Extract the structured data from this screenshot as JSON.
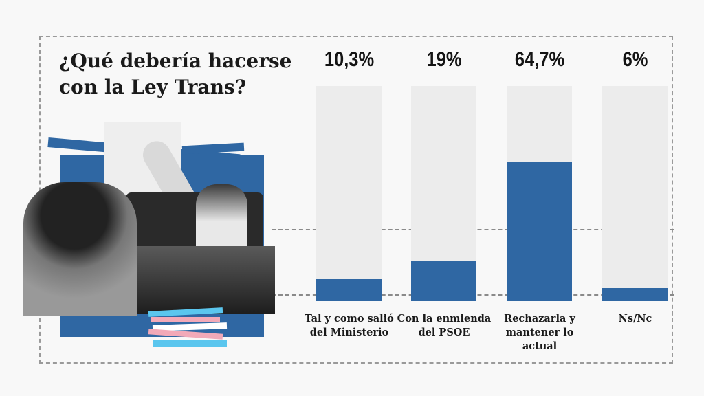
{
  "chart_data": {
    "type": "bar",
    "title": "¿Qué debería hacerse con la Ley Trans?",
    "categories": [
      "Tal y como salió del Ministerio",
      "Con la enmienda del PSOE",
      "Rechazarla y mantener lo actual",
      "Ns/Nc"
    ],
    "value_labels": [
      "10,3%",
      "19%",
      "64,7%",
      "6%"
    ],
    "values": [
      10.3,
      19,
      64.7,
      6
    ],
    "ylim": [
      0,
      100
    ],
    "xlabel": "",
    "ylabel": "",
    "colors": {
      "bar": "#2f67a3",
      "track": "#ececec"
    }
  }
}
